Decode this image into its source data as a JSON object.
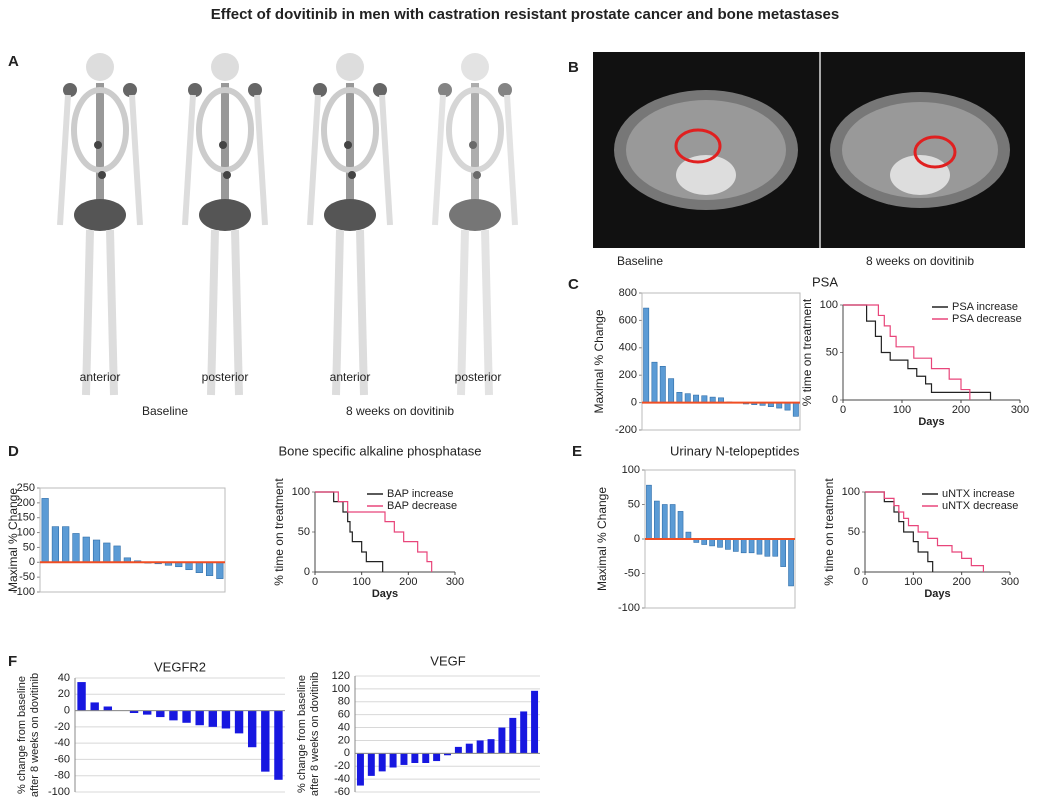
{
  "title": "Effect of dovitinib in men with castration resistant prostate cancer and bone metastases",
  "panel_labels": [
    "A",
    "B",
    "C",
    "D",
    "E",
    "F"
  ],
  "panel_a": {
    "view_labels": [
      "anterior",
      "posterior",
      "anterior",
      "posterior"
    ],
    "time_labels": [
      "Baseline",
      "8 weeks on dovitinib"
    ]
  },
  "panel_b": {
    "time_labels": [
      "Baseline",
      "8 weeks on dovitinib"
    ]
  },
  "chart_data": [
    {
      "type": "bar",
      "y_label": "Maximal % Change",
      "color": "#5b9bd5",
      "zero_line_color": "#f04e23",
      "values": [
        690,
        295,
        265,
        175,
        75,
        65,
        55,
        50,
        40,
        35,
        5,
        0,
        -10,
        -15,
        -20,
        -30,
        -40,
        -55,
        -100
      ],
      "ylim": [
        -200,
        800
      ],
      "yticks": [
        -200,
        0,
        200,
        400,
        600,
        800
      ]
    },
    {
      "type": "line",
      "title": "PSA",
      "x_label": "Days",
      "y_label": "% time on treatment",
      "xlim": [
        0,
        300
      ],
      "xticks": [
        0,
        100,
        200,
        300
      ],
      "ylim": [
        0,
        100
      ],
      "yticks": [
        0,
        50,
        100
      ],
      "series": [
        {
          "name": "PSA increase",
          "color": "#222222",
          "x": [
            0,
            40,
            40,
            55,
            55,
            65,
            65,
            80,
            80,
            110,
            110,
            125,
            125,
            140,
            140,
            150,
            150,
            250,
            250
          ],
          "values": [
            100,
            100,
            83,
            83,
            67,
            67,
            50,
            50,
            42,
            42,
            33,
            33,
            25,
            25,
            17,
            17,
            8,
            8,
            0
          ]
        },
        {
          "name": "PSA decrease",
          "color": "#e8457a",
          "x": [
            0,
            60,
            60,
            70,
            70,
            80,
            80,
            90,
            90,
            120,
            120,
            150,
            150,
            180,
            180,
            200,
            200,
            215,
            215
          ],
          "values": [
            100,
            100,
            89,
            89,
            78,
            78,
            67,
            67,
            56,
            56,
            44,
            44,
            33,
            33,
            22,
            22,
            11,
            11,
            0
          ]
        }
      ]
    },
    {
      "type": "bar",
      "title": "Bone specific alkaline phosphatase",
      "y_label": "Maximal % Change",
      "color": "#5b9bd5",
      "zero_line_color": "#f04e23",
      "values": [
        215,
        120,
        120,
        97,
        85,
        75,
        65,
        55,
        15,
        5,
        -3,
        -5,
        -10,
        -15,
        -25,
        -35,
        -45,
        -55
      ],
      "ylim": [
        -100,
        250
      ],
      "yticks": [
        -100,
        -50,
        0,
        50,
        100,
        150,
        200,
        250
      ]
    },
    {
      "type": "line",
      "x_label": "Days",
      "y_label": "% time on treatment",
      "xlim": [
        0,
        300
      ],
      "xticks": [
        0,
        100,
        200,
        300
      ],
      "ylim": [
        0,
        100
      ],
      "yticks": [
        0,
        50,
        100
      ],
      "series": [
        {
          "name": "BAP increase",
          "color": "#222222",
          "x": [
            0,
            40,
            40,
            60,
            60,
            70,
            70,
            75,
            75,
            80,
            80,
            100,
            100,
            110,
            110,
            145,
            145
          ],
          "values": [
            100,
            100,
            88,
            88,
            75,
            75,
            63,
            63,
            50,
            50,
            38,
            38,
            25,
            25,
            13,
            13,
            0
          ]
        },
        {
          "name": "BAP decrease",
          "color": "#e8457a",
          "x": [
            0,
            50,
            50,
            70,
            70,
            150,
            150,
            170,
            170,
            190,
            190,
            220,
            220,
            240,
            240,
            250,
            250
          ],
          "values": [
            100,
            100,
            88,
            88,
            75,
            75,
            63,
            63,
            50,
            50,
            38,
            38,
            25,
            25,
            13,
            13,
            0
          ]
        }
      ]
    },
    {
      "type": "bar",
      "title": "Urinary N-telopeptides",
      "y_label": "Maximal % Change",
      "color": "#5b9bd5",
      "zero_line_color": "#f04e23",
      "values": [
        78,
        55,
        50,
        50,
        40,
        10,
        -5,
        -8,
        -10,
        -12,
        -15,
        -18,
        -20,
        -20,
        -22,
        -25,
        -25,
        -40,
        -68
      ],
      "ylim": [
        -100,
        100
      ],
      "yticks": [
        -100,
        -50,
        0,
        50,
        100
      ]
    },
    {
      "type": "line",
      "x_label": "Days",
      "y_label": "% time on treatment",
      "xlim": [
        0,
        300
      ],
      "xticks": [
        0,
        100,
        200,
        300
      ],
      "ylim": [
        0,
        100
      ],
      "yticks": [
        0,
        50,
        100
      ],
      "series": [
        {
          "name": "uNTX increase",
          "color": "#222222",
          "x": [
            0,
            40,
            40,
            60,
            60,
            70,
            70,
            80,
            80,
            100,
            100,
            110,
            110,
            130,
            130,
            140,
            140
          ],
          "values": [
            100,
            100,
            88,
            88,
            75,
            75,
            63,
            63,
            50,
            50,
            38,
            38,
            25,
            25,
            13,
            13,
            0
          ]
        },
        {
          "name": "uNTX decrease",
          "color": "#e8457a",
          "x": [
            0,
            40,
            40,
            60,
            60,
            70,
            70,
            80,
            80,
            90,
            90,
            110,
            110,
            130,
            130,
            150,
            150,
            180,
            180,
            200,
            200,
            220,
            220,
            245,
            245
          ],
          "values": [
            100,
            100,
            92,
            92,
            83,
            83,
            75,
            75,
            67,
            67,
            58,
            58,
            50,
            50,
            42,
            42,
            33,
            33,
            25,
            25,
            17,
            17,
            8,
            8,
            0
          ]
        }
      ]
    },
    {
      "type": "bar",
      "title": "VEGFR2",
      "y_label": [
        "% change from baseline",
        "after 8 weeks on dovitinib"
      ],
      "color": "#1717e0",
      "grid": true,
      "values": [
        35,
        10,
        5,
        0,
        -3,
        -5,
        -8,
        -12,
        -15,
        -18,
        -20,
        -22,
        -28,
        -45,
        -75,
        -85
      ],
      "ylim": [
        -100,
        40
      ],
      "yticks": [
        -100,
        -80,
        -60,
        -40,
        -20,
        0,
        20,
        40
      ]
    },
    {
      "type": "bar",
      "title": "VEGF",
      "y_label": [
        "% change from baseline",
        "after 8 weeks on dovitinib"
      ],
      "color": "#1717e0",
      "grid": true,
      "values": [
        -50,
        -35,
        -28,
        -22,
        -18,
        -15,
        -15,
        -12,
        -3,
        10,
        15,
        20,
        22,
        40,
        55,
        65,
        97
      ],
      "ylim": [
        -60,
        120
      ],
      "yticks": [
        -60,
        -40,
        -20,
        0,
        20,
        40,
        60,
        80,
        100,
        120
      ]
    }
  ]
}
